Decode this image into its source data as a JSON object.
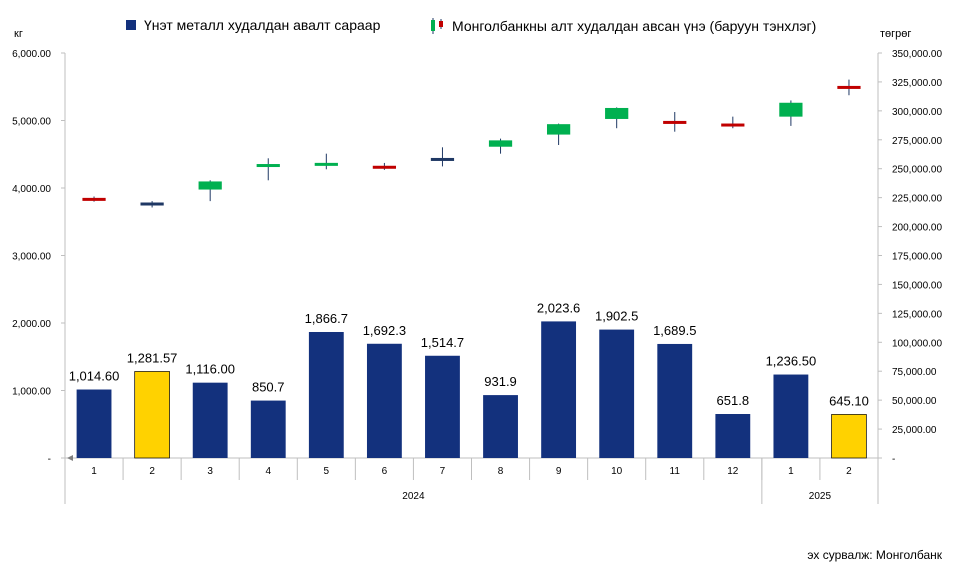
{
  "legend": {
    "bar_label": "Үнэт металл худалдан авалт сараар",
    "candle_label": "Монголбанкны алт худалдан авсан үнэ (баруун тэнхлэг)"
  },
  "units": {
    "left": "кг",
    "right": "төгрөг"
  },
  "source": "эх сурвалж: Монголбанк",
  "colors": {
    "bar": "#13317d",
    "bar_highlight": "#ffd200",
    "candle_up": "#00b050",
    "candle_down": "#c00000",
    "candle_flat": "#1f3864",
    "grid": "#d9d9d9",
    "axis": "#bfbfbf"
  },
  "chart_data": {
    "type": "bar",
    "title": "",
    "categories": [
      "1",
      "2",
      "3",
      "4",
      "5",
      "6",
      "7",
      "8",
      "9",
      "10",
      "11",
      "12",
      "1",
      "2"
    ],
    "groups": [
      {
        "label": "2024",
        "count": 12
      },
      {
        "label": "2025",
        "count": 2
      }
    ],
    "values": [
      1014.6,
      1281.57,
      1116.0,
      850.7,
      1866.7,
      1692.3,
      1514.7,
      931.9,
      2023.6,
      1902.5,
      1689.5,
      651.8,
      1236.5,
      645.1
    ],
    "value_labels": [
      "1,014.60",
      "1,281.57",
      "1,116.00",
      "850.7",
      "1,866.7",
      "1,692.3",
      "1,514.7",
      "931.9",
      "2,023.6",
      "1,902.5",
      "1,689.5",
      "651.8",
      "1,236.50",
      "645.10"
    ],
    "highlight": [
      false,
      true,
      false,
      false,
      false,
      false,
      false,
      false,
      false,
      false,
      false,
      false,
      false,
      true
    ],
    "ylim": [
      0,
      6000
    ],
    "yticks": [
      0,
      1000,
      2000,
      3000,
      4000,
      5000,
      6000
    ],
    "ytick_labels": [
      "-",
      "1,000.00",
      "2,000.00",
      "3,000.00",
      "4,000.00",
      "5,000.00",
      "6,000.00"
    ],
    "y2lim": [
      0,
      350000
    ],
    "y2ticks": [
      0,
      25000,
      50000,
      75000,
      100000,
      125000,
      150000,
      175000,
      200000,
      225000,
      250000,
      275000,
      300000,
      325000,
      350000
    ],
    "y2tick_labels": [
      "-",
      "25,000.00",
      "50,000.00",
      "75,000.00",
      "100,000.00",
      "125,000.00",
      "150,000.00",
      "175,000.00",
      "200,000.00",
      "225,000.00",
      "250,000.00",
      "275,000.00",
      "300,000.00",
      "325,000.00",
      "350,000.00"
    ],
    "grid": true,
    "candles": [
      {
        "open": 224000,
        "close": 223000,
        "high": 226000,
        "low": 221500
      },
      {
        "open": 219500,
        "close": 219500,
        "high": 222000,
        "low": 216500
      },
      {
        "open": 232000,
        "close": 239000,
        "high": 240000,
        "low": 222000
      },
      {
        "open": 252000,
        "close": 253500,
        "high": 259000,
        "low": 240000
      },
      {
        "open": 253000,
        "close": 254500,
        "high": 263000,
        "low": 249500
      },
      {
        "open": 252000,
        "close": 250500,
        "high": 255000,
        "low": 249000
      },
      {
        "open": 258000,
        "close": 258000,
        "high": 268500,
        "low": 252000
      },
      {
        "open": 269000,
        "close": 274500,
        "high": 276000,
        "low": 263000
      },
      {
        "open": 279500,
        "close": 288500,
        "high": 289000,
        "low": 270500
      },
      {
        "open": 293000,
        "close": 302500,
        "high": 303000,
        "low": 285000
      },
      {
        "open": 290500,
        "close": 289500,
        "high": 299000,
        "low": 282000
      },
      {
        "open": 288500,
        "close": 287000,
        "high": 295000,
        "low": 285000
      },
      {
        "open": 295000,
        "close": 307000,
        "high": 309000,
        "low": 287000
      },
      {
        "open": 321000,
        "close": 319500,
        "high": 327000,
        "low": 313500
      }
    ]
  }
}
